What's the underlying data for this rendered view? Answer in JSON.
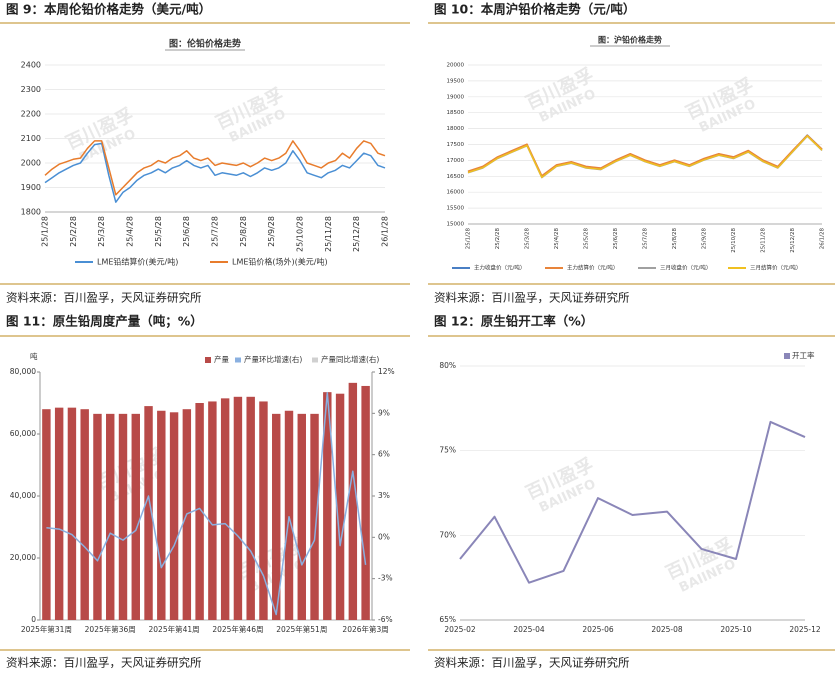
{
  "figures": [
    {
      "heading": "图 9：本周伦铅价格走势（美元/吨）",
      "source": "资料来源：百川盈孚，天风证券研究所"
    },
    {
      "heading": "图 10：本周沪铅价格走势（元/吨）",
      "source": "资料来源：百川盈孚，天风证券研究所"
    },
    {
      "heading": "图 11：原生铅周度产量（吨；%）",
      "source": "资料来源：百川盈孚，天风证券研究所"
    },
    {
      "heading": "图 12：原生铅开工率（%）",
      "source": "资料来源：百川盈孚，天风证券研究所"
    }
  ],
  "watermark": "百川盈孚",
  "watermark_en": "BAIINFO",
  "chart_data": [
    {
      "type": "line",
      "title": "图：伦铅价格走势",
      "grid": true,
      "categories": [
        "25/1/28",
        null,
        null,
        null,
        "25/2/28",
        null,
        null,
        null,
        "25/3/28",
        null,
        null,
        null,
        "25/4/28",
        null,
        null,
        null,
        "25/5/28",
        null,
        null,
        null,
        "25/6/28",
        null,
        null,
        null,
        "25/7/28",
        null,
        null,
        null,
        "25/8/28",
        null,
        null,
        null,
        "25/9/28",
        null,
        null,
        null,
        "25/10/28",
        null,
        null,
        null,
        "25/11/28",
        null,
        null,
        null,
        "25/12/28",
        null,
        null,
        null,
        "26/1/28"
      ],
      "ylim": [
        1800,
        2400
      ],
      "yticks": [
        1800,
        1900,
        2000,
        2100,
        2200,
        2300,
        2400
      ],
      "series": [
        {
          "name": "LME铅结算价(美元/吨)",
          "color": "#4a8fd4",
          "values": [
            1920,
            1940,
            1960,
            1975,
            1990,
            2000,
            2040,
            2075,
            2080,
            1950,
            1840,
            1880,
            1900,
            1930,
            1950,
            1960,
            1975,
            1960,
            1980,
            1990,
            2010,
            1990,
            1980,
            1990,
            1950,
            1960,
            1955,
            1950,
            1960,
            1945,
            1960,
            1980,
            1970,
            1980,
            2000,
            2050,
            2010,
            1960,
            1950,
            1940,
            1960,
            1970,
            1990,
            1980,
            2010,
            2040,
            2030,
            1990,
            1980
          ]
        },
        {
          "name": "LME铅价格(场外)(美元/吨)",
          "color": "#e87c2c",
          "values": [
            1950,
            1975,
            1995,
            2005,
            2015,
            2020,
            2060,
            2090,
            2090,
            1980,
            1870,
            1900,
            1930,
            1960,
            1980,
            1990,
            2010,
            2000,
            2020,
            2030,
            2050,
            2020,
            2010,
            2020,
            1990,
            2000,
            1995,
            1990,
            2000,
            1985,
            2000,
            2020,
            2010,
            2020,
            2040,
            2090,
            2050,
            2000,
            1990,
            1980,
            2000,
            2010,
            2040,
            2020,
            2060,
            2090,
            2080,
            2040,
            2030
          ]
        }
      ]
    },
    {
      "type": "line",
      "title": "图：沪铅价格走势",
      "grid": true,
      "categories": [
        "25/1/28",
        null,
        "25/2/28",
        null,
        "25/3/28",
        null,
        "25/4/28",
        null,
        "25/5/28",
        null,
        "25/6/28",
        null,
        "25/7/28",
        null,
        "25/8/28",
        null,
        "25/9/28",
        null,
        "25/10/28",
        null,
        "25/11/28",
        null,
        "25/12/28",
        null,
        "26/1/28"
      ],
      "ylim": [
        15000,
        20000
      ],
      "yticks": [
        15000,
        15500,
        16000,
        16500,
        17000,
        17500,
        18000,
        18500,
        19000,
        19500,
        20000
      ],
      "series": [
        {
          "name": "主力收盘价（元/吨）",
          "color": "#4a7fc4",
          "values": [
            16650,
            16800,
            17100,
            17300,
            17500,
            16500,
            16850,
            16950,
            16800,
            16750,
            17000,
            17200,
            17000,
            16850,
            17000,
            16850,
            17050,
            17200,
            17100,
            17300,
            17000,
            16800,
            17300,
            17800,
            17350
          ]
        },
        {
          "name": "主力结算价（元/吨）",
          "color": "#e8843a",
          "values": [
            16660,
            16810,
            17110,
            17310,
            17510,
            16520,
            16860,
            16960,
            16810,
            16760,
            17010,
            17210,
            17010,
            16860,
            17010,
            16860,
            17060,
            17210,
            17110,
            17310,
            17010,
            16810,
            17310,
            17790,
            17360
          ]
        },
        {
          "name": "三月收盘价（元/吨）",
          "color": "#a0a0a0",
          "values": [
            16610,
            16760,
            17060,
            17260,
            17460,
            16460,
            16810,
            16910,
            16760,
            16710,
            16960,
            17160,
            16960,
            16810,
            16960,
            16810,
            17010,
            17160,
            17060,
            17260,
            16960,
            16760,
            17260,
            17760,
            17310
          ]
        },
        {
          "name": "三月结算价（元/吨）",
          "color": "#f0c020",
          "values": [
            16620,
            16770,
            17070,
            17270,
            17470,
            16470,
            16820,
            16920,
            16770,
            16720,
            16970,
            17170,
            16970,
            16820,
            16970,
            16820,
            17020,
            17170,
            17070,
            17270,
            16970,
            16770,
            17270,
            17770,
            17320
          ]
        }
      ]
    },
    {
      "type": "bar",
      "y_unit": "吨",
      "grid": false,
      "categories": [
        "2025年第31周",
        null,
        null,
        null,
        null,
        "2025年第36周",
        null,
        null,
        null,
        null,
        "2025年第41周",
        null,
        null,
        null,
        null,
        "2025年第46周",
        null,
        null,
        null,
        null,
        "2025年第51周",
        null,
        null,
        null,
        null,
        "2026年第3周"
      ],
      "ylim": [
        0,
        80000
      ],
      "yticks": [
        0,
        {
          "value": 20000,
          "label": "20,000"
        },
        {
          "value": 40000,
          "label": "40,000"
        },
        {
          "value": 60000,
          "label": "60,000"
        },
        {
          "value": 80000,
          "label": "80,000"
        }
      ],
      "y2lim": [
        -6,
        12
      ],
      "y2ticks": [
        {
          "value": -6,
          "label": "-6%"
        },
        {
          "value": -3,
          "label": "-3%"
        },
        {
          "value": 0,
          "label": "0%"
        },
        {
          "value": 3,
          "label": "3%"
        },
        {
          "value": 6,
          "label": "6%"
        },
        {
          "value": 9,
          "label": "9%"
        },
        {
          "value": 12,
          "label": "12%"
        }
      ],
      "series": [
        {
          "name": "产量",
          "type": "bar",
          "color": "#b84a48",
          "values": [
            68000,
            68500,
            68500,
            68000,
            66500,
            66500,
            66500,
            66500,
            69000,
            67500,
            67000,
            68000,
            70000,
            70500,
            71500,
            72000,
            72000,
            70500,
            66500,
            67500,
            66500,
            66500,
            73500,
            73000,
            76500,
            75500
          ]
        },
        {
          "name": "产量环比增速(右)",
          "type": "line",
          "axis": "y2",
          "color": "#8ab0e0",
          "values": [
            0.7,
            0.6,
            0.2,
            -0.7,
            -1.7,
            0.3,
            -0.2,
            0.5,
            3.0,
            -2.2,
            -0.6,
            1.7,
            2.1,
            0.9,
            1.0,
            0.1,
            -1.0,
            -2.8,
            -5.6,
            1.5,
            -2.0,
            -0.2,
            10.5,
            -0.6,
            4.8,
            -2.0
          ]
        },
        {
          "name": "产量同比增速(右)",
          "type": "line",
          "axis": "y2",
          "color": "#d0d0d0",
          "values": [
            null,
            null,
            null,
            null,
            null,
            null,
            null,
            null,
            null,
            null,
            null,
            null,
            null,
            null,
            null,
            null,
            null,
            null,
            null,
            null,
            null,
            null,
            null,
            null,
            null,
            null
          ]
        }
      ]
    },
    {
      "type": "line",
      "grid": true,
      "categories": [
        "2025-02",
        null,
        "2025-04",
        null,
        "2025-06",
        null,
        "2025-08",
        null,
        "2025-10",
        null,
        "2025-12"
      ],
      "ylim": [
        65,
        80
      ],
      "yticks": [
        {
          "value": 65,
          "label": "65%"
        },
        {
          "value": 70,
          "label": "70%"
        },
        {
          "value": 75,
          "label": "75%"
        },
        {
          "value": 80,
          "label": "80%"
        }
      ],
      "series": [
        {
          "name": "开工率",
          "color": "#8a86b8",
          "values": [
            68.6,
            71.1,
            67.2,
            67.9,
            72.2,
            71.2,
            71.4,
            69.2,
            68.6,
            76.7,
            75.8
          ]
        }
      ]
    }
  ]
}
